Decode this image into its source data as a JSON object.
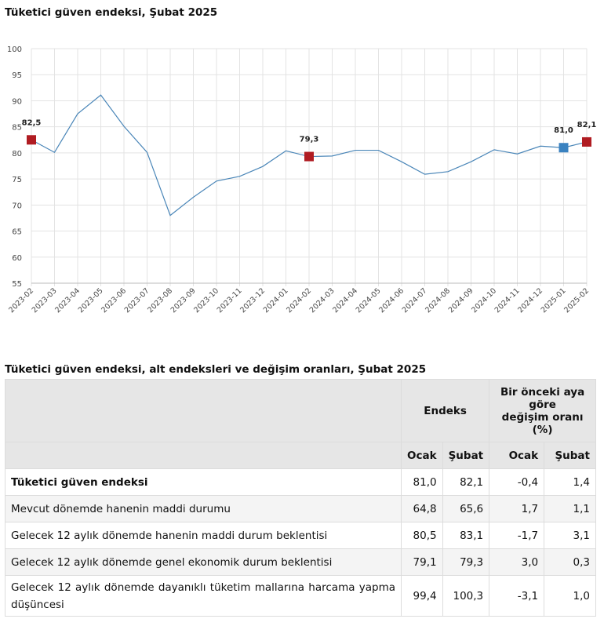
{
  "chart_title": "Tüketici güven endeksi, Şubat 2025",
  "chart_data": {
    "type": "line",
    "x": [
      "2023-02",
      "2023-03",
      "2023-04",
      "2023-05",
      "2023-06",
      "2023-07",
      "2023-08",
      "2023-09",
      "2023-10",
      "2023-11",
      "2023-12",
      "2024-01",
      "2024-02",
      "2024-03",
      "2024-04",
      "2024-05",
      "2024-06",
      "2024-07",
      "2024-08",
      "2024-09",
      "2024-10",
      "2024-11",
      "2024-12",
      "2025-01",
      "2025-02"
    ],
    "values": [
      82.5,
      80.1,
      87.5,
      91.1,
      85.1,
      80.1,
      68.0,
      71.5,
      74.6,
      75.5,
      77.4,
      80.4,
      79.3,
      79.4,
      80.5,
      80.5,
      78.3,
      75.9,
      76.4,
      78.3,
      80.6,
      79.8,
      81.3,
      81.0,
      82.1
    ],
    "ylim": [
      55,
      100
    ],
    "yticks": [
      55,
      60,
      65,
      70,
      75,
      80,
      85,
      90,
      95,
      100
    ],
    "grid": true,
    "line_color": "#4a86b8",
    "highlights": [
      {
        "x": "2023-02",
        "label": "82,5",
        "color": "#b01c22"
      },
      {
        "x": "2024-02",
        "label": "79,3",
        "color": "#b01c22"
      },
      {
        "x": "2025-01",
        "label": "81,0",
        "color": "#3a82c0"
      },
      {
        "x": "2025-02",
        "label": "82,1",
        "color": "#b01c22"
      }
    ]
  },
  "table": {
    "title": "Tüketici güven endeksi, alt endeksleri ve değişim oranları, Şubat 2025",
    "group1": "Endeks",
    "group2_lines": [
      "Bir önceki aya",
      "göre",
      "değişim oranı (%)"
    ],
    "subheaders": [
      "Ocak",
      "Şubat",
      "Ocak",
      "Şubat"
    ],
    "rows": [
      {
        "label": "Tüketici güven endeksi",
        "values": [
          "81,0",
          "82,1",
          "-0,4",
          "1,4"
        ]
      },
      {
        "label": "Mevcut dönemde hanenin maddi durumu",
        "values": [
          "64,8",
          "65,6",
          "1,7",
          "1,1"
        ]
      },
      {
        "label": "Gelecek 12 aylık dönemde hanenin maddi durum beklentisi",
        "values": [
          "80,5",
          "83,1",
          "-1,7",
          "3,1"
        ]
      },
      {
        "label": "Gelecek 12 aylık dönemde genel ekonomik durum beklentisi",
        "values": [
          "79,1",
          "79,3",
          "3,0",
          "0,3"
        ]
      },
      {
        "label": "Gelecek 12 aylık dönemde dayanıklı tüketim mallarına harcama yapma düşüncesi",
        "values": [
          "99,4",
          "100,3",
          "-3,1",
          "1,0"
        ]
      }
    ]
  }
}
